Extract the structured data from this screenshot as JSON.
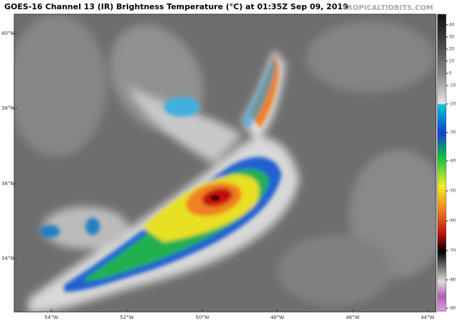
{
  "header": {
    "title": "GOES-16 Channel 13 (IR) Brightness Temperature (°C) at 01:35Z Sep 09, 2019",
    "credit": "TROPICALTIDBITS.COM"
  },
  "map": {
    "lat_labels": [
      "40°N",
      "38°N",
      "36°N",
      "34°N"
    ],
    "lon_labels": [
      "54°W",
      "52°W",
      "50°W",
      "48°W",
      "46°W",
      "44°W"
    ]
  },
  "colorbar": {
    "ticks": [
      40,
      30,
      20,
      10,
      0,
      -10,
      -20,
      -30,
      -40,
      -50,
      -60,
      -70,
      -80,
      -90
    ]
  }
}
